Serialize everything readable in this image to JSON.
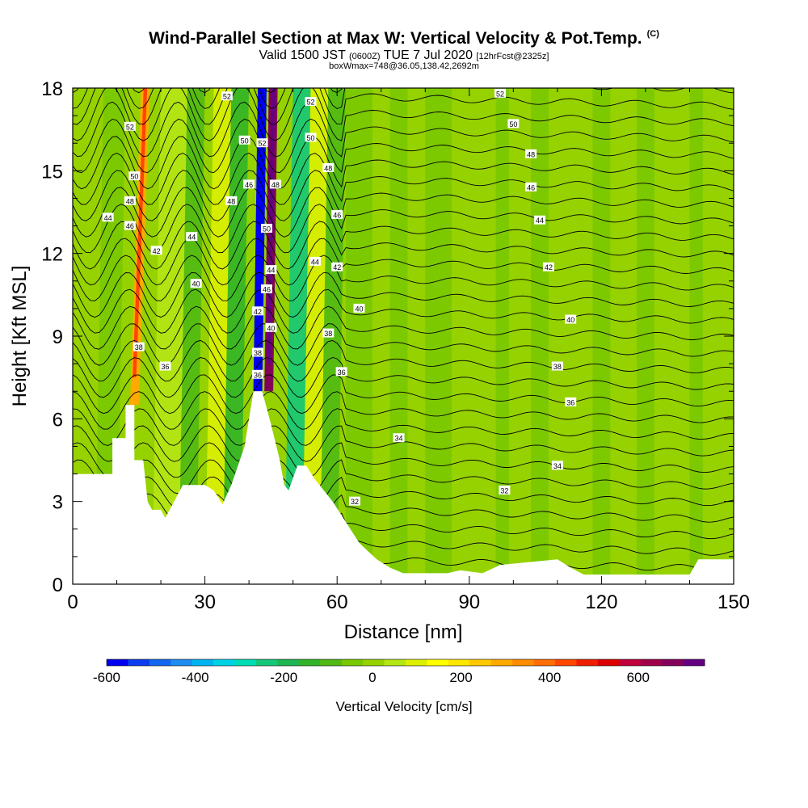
{
  "title": {
    "main": "Wind-Parallel Section at Max W: Vertical Velocity & Pot.Temp.",
    "copyright": "(C)",
    "valid_prefix": "Valid 1500 JST",
    "valid_utc": "(0600Z)",
    "valid_date": "TUE 7 Jul 2020",
    "forecast": "[12hrFcst@2325z]",
    "box": "boxWmax=748@36.05,138.42,2692m"
  },
  "chart_data": {
    "type": "heatmap",
    "title": "Wind-Parallel Section at Max W: Vertical Velocity & Pot.Temp.",
    "xlabel": "Distance [nm]",
    "ylabel": "Height [Kft MSL]",
    "xlim": [
      0,
      150
    ],
    "ylim": [
      0,
      18
    ],
    "x_ticks": [
      "0",
      "30",
      "60",
      "90",
      "120",
      "150"
    ],
    "y_ticks": [
      "0",
      "3",
      "6",
      "9",
      "12",
      "15",
      "18"
    ],
    "grid": false,
    "colorbar": {
      "label": "Vertical Velocity [cm/s]",
      "min": -600,
      "max": 750,
      "step": 50,
      "tick_labels": [
        "-600",
        "-400",
        "-200",
        "0",
        "200",
        "400",
        "600"
      ],
      "colors": [
        "#0000f0",
        "#0a3cf0",
        "#1466f0",
        "#1e8cf0",
        "#00b4f0",
        "#00d2e6",
        "#00dcb4",
        "#14c878",
        "#1eb450",
        "#32b428",
        "#50b914",
        "#78c800",
        "#96d200",
        "#b4e614",
        "#dcf000",
        "#ffff00",
        "#ffe600",
        "#ffc800",
        "#ffaa00",
        "#ff8c00",
        "#ff6e00",
        "#ff4600",
        "#f01e00",
        "#dc0000",
        "#c0003c",
        "#a0004b",
        "#82005a",
        "#640082"
      ]
    },
    "terrain_kft": [
      [
        0,
        4
      ],
      [
        9,
        4
      ],
      [
        9,
        5.3
      ],
      [
        12,
        5.3
      ],
      [
        12,
        6.5
      ],
      [
        14,
        6.5
      ],
      [
        14,
        4.5
      ],
      [
        16,
        4.5
      ],
      [
        17,
        3
      ],
      [
        18,
        2.7
      ],
      [
        20,
        2.7
      ],
      [
        21,
        2.4
      ],
      [
        23,
        3
      ],
      [
        25,
        3.6
      ],
      [
        30,
        3.6
      ],
      [
        32,
        3.4
      ],
      [
        34,
        2.9
      ],
      [
        36,
        3.6
      ],
      [
        39,
        5
      ],
      [
        41,
        7
      ],
      [
        43,
        7
      ],
      [
        45,
        5.8
      ],
      [
        47,
        4.5
      ],
      [
        48,
        3.6
      ],
      [
        49,
        3.4
      ],
      [
        51,
        4.3
      ],
      [
        53,
        4.3
      ],
      [
        55,
        3.8
      ],
      [
        57,
        3.4
      ],
      [
        59,
        3
      ],
      [
        61,
        2.5
      ],
      [
        63,
        2
      ],
      [
        65,
        1.5
      ],
      [
        67,
        1.2
      ],
      [
        69,
        0.9
      ],
      [
        72,
        0.6
      ],
      [
        75,
        0.4
      ],
      [
        85,
        0.4
      ],
      [
        88,
        0.5
      ],
      [
        93,
        0.4
      ],
      [
        97,
        0.7
      ],
      [
        110,
        0.9
      ],
      [
        113,
        0.6
      ],
      [
        116,
        0.35
      ],
      [
        140,
        0.35
      ],
      [
        142,
        0.9
      ],
      [
        150,
        0.9
      ]
    ],
    "updraft_bands": [
      {
        "x_base": 14,
        "x_top": 16.5,
        "h_base": 6.5,
        "value": 300
      },
      {
        "x_base": 44.5,
        "x_top": 45.5,
        "h_base": 7,
        "value": 700
      },
      {
        "x_base": 42,
        "x_top": 43,
        "h_base": 7,
        "value": -600
      }
    ],
    "theta_contour_labels": [
      {
        "x": 13,
        "y": 16.6,
        "text": "52"
      },
      {
        "x": 14,
        "y": 14.8,
        "text": "50"
      },
      {
        "x": 13,
        "y": 13.9,
        "text": "48"
      },
      {
        "x": 13,
        "y": 13.0,
        "text": "46"
      },
      {
        "x": 8,
        "y": 13.3,
        "text": "44"
      },
      {
        "x": 27,
        "y": 12.6,
        "text": "44"
      },
      {
        "x": 19,
        "y": 12.1,
        "text": "42"
      },
      {
        "x": 28,
        "y": 10.9,
        "text": "40"
      },
      {
        "x": 15,
        "y": 8.6,
        "text": "38"
      },
      {
        "x": 21,
        "y": 7.9,
        "text": "36"
      },
      {
        "x": 35,
        "y": 17.7,
        "text": "52"
      },
      {
        "x": 39,
        "y": 16.1,
        "text": "50"
      },
      {
        "x": 36,
        "y": 13.9,
        "text": "48"
      },
      {
        "x": 40,
        "y": 14.5,
        "text": "46"
      },
      {
        "x": 43,
        "y": 16.0,
        "text": "52"
      },
      {
        "x": 46,
        "y": 14.5,
        "text": "48"
      },
      {
        "x": 44,
        "y": 12.9,
        "text": "50"
      },
      {
        "x": 45,
        "y": 11.4,
        "text": "44"
      },
      {
        "x": 44,
        "y": 10.7,
        "text": "46"
      },
      {
        "x": 42,
        "y": 9.9,
        "text": "42"
      },
      {
        "x": 45,
        "y": 9.3,
        "text": "40"
      },
      {
        "x": 42,
        "y": 8.4,
        "text": "38"
      },
      {
        "x": 42,
        "y": 7.6,
        "text": "36"
      },
      {
        "x": 54,
        "y": 17.5,
        "text": "52"
      },
      {
        "x": 54,
        "y": 16.2,
        "text": "50"
      },
      {
        "x": 58,
        "y": 15.1,
        "text": "48"
      },
      {
        "x": 60,
        "y": 13.4,
        "text": "46"
      },
      {
        "x": 55,
        "y": 11.7,
        "text": "44"
      },
      {
        "x": 60,
        "y": 11.5,
        "text": "42"
      },
      {
        "x": 65,
        "y": 10.0,
        "text": "40"
      },
      {
        "x": 58,
        "y": 9.1,
        "text": "38"
      },
      {
        "x": 61,
        "y": 7.7,
        "text": "36"
      },
      {
        "x": 74,
        "y": 5.3,
        "text": "34"
      },
      {
        "x": 64,
        "y": 3.0,
        "text": "32"
      },
      {
        "x": 97,
        "y": 17.8,
        "text": "52"
      },
      {
        "x": 100,
        "y": 16.7,
        "text": "50"
      },
      {
        "x": 104,
        "y": 15.6,
        "text": "48"
      },
      {
        "x": 104,
        "y": 14.4,
        "text": "46"
      },
      {
        "x": 106,
        "y": 13.2,
        "text": "44"
      },
      {
        "x": 108,
        "y": 11.5,
        "text": "42"
      },
      {
        "x": 113,
        "y": 9.6,
        "text": "40"
      },
      {
        "x": 110,
        "y": 7.9,
        "text": "38"
      },
      {
        "x": 113,
        "y": 6.6,
        "text": "36"
      },
      {
        "x": 110,
        "y": 4.3,
        "text": "34"
      },
      {
        "x": 98,
        "y": 3.4,
        "text": "32"
      }
    ]
  }
}
